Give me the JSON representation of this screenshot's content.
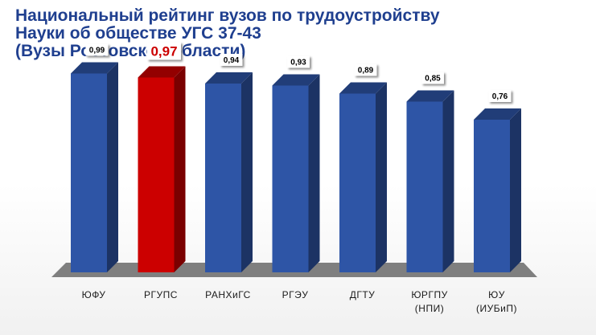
{
  "title_lines": [
    "Национальный рейтинг вузов по трудоустройству",
    "Науки об обществе УГС 37-43",
    "(Вузы Ростовской области)"
  ],
  "colors": {
    "title": "#1f3f8f",
    "bar": "#2e55a6",
    "bar_highlight": "#cc0000",
    "label_highlight": "#cc0000",
    "floor": "#7f7f7f"
  },
  "chart_data": {
    "type": "bar",
    "categories": [
      [
        "ЮФУ"
      ],
      [
        "РГУПС"
      ],
      [
        "РАНХиГС"
      ],
      [
        "РГЭУ"
      ],
      [
        "ДГТУ"
      ],
      [
        "ЮРГПУ",
        "(НПИ)"
      ],
      [
        "ЮУ",
        "(ИУБиП)"
      ]
    ],
    "values": [
      0.99,
      0.97,
      0.94,
      0.93,
      0.89,
      0.85,
      0.76
    ],
    "value_labels": [
      "0,99",
      "0,97",
      "0,94",
      "0,93",
      "0,89",
      "0,85",
      "0,76"
    ],
    "highlight_index": 1,
    "ylim": [
      0,
      1
    ],
    "grid": false,
    "legend": "none",
    "three_d": true
  }
}
